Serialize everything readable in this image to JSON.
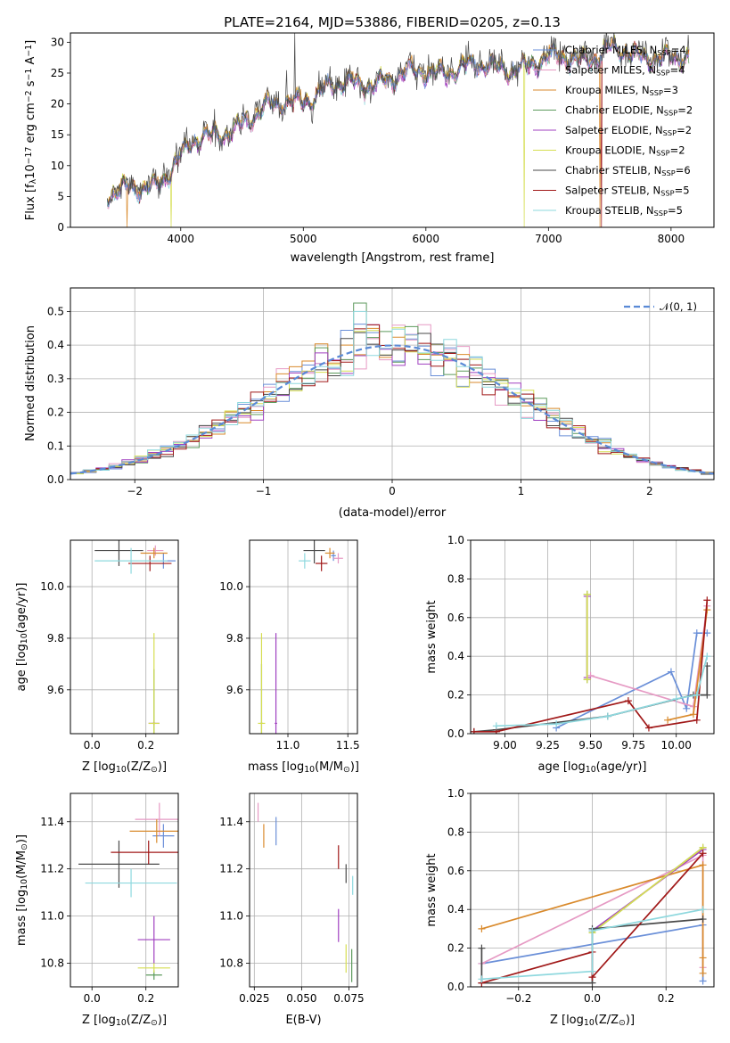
{
  "figure": {
    "title": "PLATE=2164, MJD=53886, FIBERID=0205, z=0.13"
  },
  "colors": {
    "Chabrier MILES": "#6a8fd8",
    "Salpeter MILES": "#e69ac4",
    "Kroupa MILES": "#d98a2c",
    "Chabrier ELODIE": "#5c9a5c",
    "Salpeter ELODIE": "#a040c0",
    "Kroupa ELODIE": "#d6de52",
    "Chabrier STELIB": "#4a4a4a",
    "Salpeter STELIB": "#a01818",
    "Kroupa STELIB": "#8ed8de",
    "gaussian": "#5a8ad6"
  },
  "chart_data": [
    {
      "id": "spectrum",
      "type": "line",
      "title": "PLATE=2164, MJD=53886, FIBERID=0205, z=0.13",
      "xlabel": "wavelength [Angstrom, rest frame]",
      "ylabel": "Flux [f$_\\lambda$10$^{-17}$ erg cm$^{-2}$ s$^{-1}$ A$^{-1}$]",
      "ylabel_parts": [
        "Flux [f",
        "λ",
        "10",
        "−17",
        " erg cm",
        "−2",
        " s",
        "−1",
        " A",
        "−1",
        "]"
      ],
      "xlim": [
        3100,
        8350
      ],
      "ylim": [
        0,
        31.5
      ],
      "xticks": [
        4000,
        5000,
        6000,
        7000,
        8000
      ],
      "yticks": [
        0,
        5,
        10,
        15,
        20,
        25,
        30
      ],
      "legend_position": "top-right",
      "legend": [
        {
          "model": "Chabrier MILES",
          "label_main": "Chabrier MILES, N",
          "label_sub": "SSP",
          "label_end": "=4"
        },
        {
          "model": "Salpeter MILES",
          "label_main": "Salpeter MILES, N",
          "label_sub": "SSP",
          "label_end": "=4"
        },
        {
          "model": "Kroupa MILES",
          "label_main": "Kroupa MILES, N",
          "label_sub": "SSP",
          "label_end": "=3"
        },
        {
          "model": "Chabrier ELODIE",
          "label_main": "Chabrier ELODIE, N",
          "label_sub": "SSP",
          "label_end": "=2"
        },
        {
          "model": "Salpeter ELODIE",
          "label_main": "Salpeter ELODIE, N",
          "label_sub": "SSP",
          "label_end": "=2"
        },
        {
          "model": "Kroupa ELODIE",
          "label_main": "Kroupa ELODIE, N",
          "label_sub": "SSP",
          "label_end": "=2"
        },
        {
          "model": "Chabrier STELIB",
          "label_main": "Chabrier STELIB, N",
          "label_sub": "SSP",
          "label_end": "=6"
        },
        {
          "model": "Salpeter STELIB",
          "label_main": "Salpeter STELIB, N",
          "label_sub": "SSP",
          "label_end": "=5"
        },
        {
          "model": "Kroupa STELIB",
          "label_main": "Kroupa STELIB, N",
          "label_sub": "SSP",
          "label_end": "=5"
        }
      ],
      "continuum_anchors": {
        "x": [
          3400,
          3600,
          3800,
          3950,
          4100,
          4300,
          4500,
          4700,
          4900,
          5100,
          5300,
          5500,
          5700,
          5900,
          6100,
          6300,
          6500,
          6700,
          6900,
          7100,
          7300,
          7500,
          7700,
          7900,
          8100
        ],
        "y": [
          5.5,
          5.8,
          7.0,
          10.5,
          13.5,
          15.0,
          17.0,
          19.0,
          20.5,
          21.5,
          23.0,
          23.5,
          24.0,
          24.8,
          25.5,
          26.0,
          25.8,
          26.0,
          26.5,
          27.5,
          27.5,
          28.5,
          27.8,
          28.0,
          27.0
        ]
      },
      "line_range": [
        3400,
        8150
      ]
    },
    {
      "id": "residuals",
      "type": "bar",
      "xlabel": "(data-model)/error",
      "ylabel": "Normed distribution",
      "xlim": [
        -2.5,
        2.5
      ],
      "ylim": [
        0,
        0.57
      ],
      "xticks": [
        -2,
        -1,
        0,
        1,
        2
      ],
      "yticks": [
        0.0,
        0.1,
        0.2,
        0.3,
        0.4,
        0.5
      ],
      "grid": true,
      "legend_position": "top-right",
      "gaussian_label": "𝒩(0, 1)",
      "bin_width": 0.1,
      "peak_values": [
        {
          "x": -0.25,
          "y": 0.54
        },
        {
          "x": 0.2,
          "y": 0.47
        }
      ]
    },
    {
      "id": "age-vs-Z",
      "type": "scatter",
      "xlabel_main": "Z [log",
      "xlabel_sub": "10",
      "xlabel_end": "(Z/Z",
      "xlabel_close": ")]",
      "ylabel_main": "age  [log",
      "ylabel_sub": "10",
      "ylabel_end": "(age/yr)]",
      "xlim": [
        -0.08,
        0.32
      ],
      "ylim": [
        9.43,
        10.18
      ],
      "xticks": [
        0.0,
        0.2
      ],
      "yticks": [
        9.6,
        9.8,
        10.0
      ],
      "grid": true,
      "points": [
        {
          "model": "Chabrier MILES",
          "x": 0.265,
          "xerr": 0.045,
          "y": 10.1,
          "yerr": 0.03
        },
        {
          "model": "Salpeter MILES",
          "x": 0.235,
          "xerr": 0.03,
          "y": 10.14,
          "yerr": 0.02
        },
        {
          "model": "Kroupa MILES",
          "x": 0.23,
          "xerr": 0.05,
          "y": 10.13,
          "yerr": 0.02
        },
        {
          "model": "Chabrier ELODIE",
          "x": 0.23,
          "xerr": 0.005,
          "y": 9.47,
          "yerr": 0.21
        },
        {
          "model": "Salpeter ELODIE",
          "x": 0.23,
          "xerr": 0.02,
          "y": 9.47,
          "yerr": 0.005
        },
        {
          "model": "Kroupa ELODIE",
          "x": 0.23,
          "xerr": 0.02,
          "y": 9.47,
          "yerr": 0.35
        },
        {
          "model": "Chabrier STELIB",
          "x": 0.1,
          "xerr": 0.09,
          "y": 10.14,
          "yerr": 0.06
        },
        {
          "model": "Salpeter STELIB",
          "x": 0.215,
          "xerr": 0.08,
          "y": 10.09,
          "yerr": 0.03
        },
        {
          "model": "Kroupa STELIB",
          "x": 0.145,
          "xerr": 0.135,
          "y": 10.1,
          "yerr": 0.05
        }
      ]
    },
    {
      "id": "age-vs-mass",
      "type": "scatter",
      "xlabel_main": "mass [log",
      "xlabel_sub": "10",
      "xlabel_end": "(M/M",
      "xlabel_close": ")]",
      "xlim": [
        10.68,
        11.58
      ],
      "ylim": [
        9.43,
        10.18
      ],
      "xticks": [
        10.5,
        11.0,
        11.5
      ],
      "yticks": [
        9.6,
        9.8,
        10.0
      ],
      "grid": true,
      "points": [
        {
          "model": "Chabrier MILES",
          "x": 11.38,
          "xerr": 0.02,
          "y": 10.12,
          "yerr": 0.02
        },
        {
          "model": "Salpeter MILES",
          "x": 11.42,
          "xerr": 0.04,
          "y": 10.11,
          "yerr": 0.02
        },
        {
          "model": "Kroupa MILES",
          "x": 11.35,
          "xerr": 0.04,
          "y": 10.13,
          "yerr": 0.02
        },
        {
          "model": "Chabrier ELODIE",
          "x": 10.78,
          "xerr": 0.01,
          "y": 9.47,
          "yerr": 0.23
        },
        {
          "model": "Salpeter ELODIE",
          "x": 10.9,
          "xerr": 0.01,
          "y": 9.47,
          "yerr": 0.35
        },
        {
          "model": "Kroupa ELODIE",
          "x": 10.78,
          "xerr": 0.03,
          "y": 9.47,
          "yerr": 0.35
        },
        {
          "model": "Chabrier STELIB",
          "x": 11.22,
          "xerr": 0.09,
          "y": 10.14,
          "yerr": 0.05
        },
        {
          "model": "Salpeter STELIB",
          "x": 11.28,
          "xerr": 0.05,
          "y": 10.09,
          "yerr": 0.03
        },
        {
          "model": "Kroupa STELIB",
          "x": 11.14,
          "xerr": 0.05,
          "y": 10.1,
          "yerr": 0.03
        }
      ]
    },
    {
      "id": "weight-vs-age",
      "type": "line",
      "xlabel_main": "age  [log",
      "xlabel_sub": "10",
      "xlabel_end": "(age/yr)]",
      "ylabel": "mass weight",
      "xlim": [
        8.8,
        10.22
      ],
      "ylim": [
        0,
        1
      ],
      "xticks": [
        9.0,
        9.25,
        9.5,
        9.75,
        10.0
      ],
      "xticklabels": [
        "9.00",
        "9.25",
        "9.50",
        "9.75",
        "10.00"
      ],
      "yticks": [
        0.0,
        0.2,
        0.4,
        0.6,
        0.8,
        1.0
      ],
      "grid": true,
      "series": [
        {
          "model": "Chabrier MILES",
          "x": [
            9.3,
            9.97,
            10.06,
            10.12,
            10.18
          ],
          "y": [
            0.03,
            0.32,
            0.13,
            0.52,
            0.52
          ]
        },
        {
          "model": "Salpeter MILES",
          "x": [
            9.5,
            10.1,
            10.18
          ],
          "y": [
            0.3,
            0.14,
            0.66
          ]
        },
        {
          "model": "Kroupa MILES",
          "x": [
            9.95,
            10.1,
            10.18
          ],
          "y": [
            0.07,
            0.1,
            0.64
          ]
        },
        {
          "model": "Chabrier ELODIE",
          "x": [
            9.48,
            9.48
          ],
          "y": [
            0.28,
            0.72
          ]
        },
        {
          "model": "Salpeter ELODIE",
          "x": [
            9.48,
            9.48
          ],
          "y": [
            0.29,
            0.71
          ]
        },
        {
          "model": "Kroupa ELODIE",
          "x": [
            9.48,
            9.48
          ],
          "y": [
            0.28,
            0.72
          ]
        },
        {
          "model": "Chabrier STELIB",
          "x": [
            8.82,
            8.95,
            9.6,
            10.1,
            10.18,
            10.18
          ],
          "y": [
            0.01,
            0.02,
            0.09,
            0.2,
            0.2,
            0.35
          ]
        },
        {
          "model": "Salpeter STELIB",
          "x": [
            8.82,
            8.95,
            9.72,
            9.84,
            10.12,
            10.18
          ],
          "y": [
            0.01,
            0.01,
            0.17,
            0.03,
            0.07,
            0.69
          ]
        },
        {
          "model": "Kroupa STELIB",
          "x": [
            8.95,
            9.3,
            9.6,
            10.0,
            10.12,
            10.18
          ],
          "y": [
            0.04,
            0.05,
            0.09,
            0.18,
            0.2,
            0.4
          ]
        }
      ]
    },
    {
      "id": "mass-vs-Z",
      "type": "scatter",
      "xlabel_main": "Z [log",
      "xlabel_sub": "10",
      "xlabel_end": "(Z/Z",
      "xlabel_close": ")]",
      "ylabel_main": "mass [log",
      "ylabel_sub": "10",
      "ylabel_end": "(M/M",
      "ylabel_close": ")]",
      "xlim": [
        -0.08,
        0.32
      ],
      "ylim": [
        10.7,
        11.52
      ],
      "xticks": [
        0.0,
        0.2
      ],
      "yticks": [
        10.8,
        11.0,
        11.2,
        11.4
      ],
      "grid": true,
      "points": [
        {
          "model": "Chabrier MILES",
          "x": 0.265,
          "xerr": 0.04,
          "y": 11.34,
          "yerr": 0.05
        },
        {
          "model": "Salpeter MILES",
          "x": 0.25,
          "xerr": 0.09,
          "y": 11.41,
          "yerr": 0.07
        },
        {
          "model": "Kroupa MILES",
          "x": 0.24,
          "xerr": 0.1,
          "y": 11.36,
          "yerr": 0.05
        },
        {
          "model": "Chabrier ELODIE",
          "x": 0.23,
          "xerr": 0.03,
          "y": 10.75,
          "yerr": 0.02
        },
        {
          "model": "Salpeter ELODIE",
          "x": 0.23,
          "xerr": 0.06,
          "y": 10.9,
          "yerr": 0.1
        },
        {
          "model": "Kroupa ELODIE",
          "x": 0.23,
          "xerr": 0.06,
          "y": 10.78,
          "yerr": 0.02
        },
        {
          "model": "Chabrier STELIB",
          "x": 0.1,
          "xerr": 0.15,
          "y": 11.22,
          "yerr": 0.1
        },
        {
          "model": "Salpeter STELIB",
          "x": 0.21,
          "xerr": 0.14,
          "y": 11.27,
          "yerr": 0.05
        },
        {
          "model": "Kroupa STELIB",
          "x": 0.145,
          "xerr": 0.17,
          "y": 11.14,
          "yerr": 0.06
        }
      ]
    },
    {
      "id": "mass-vs-ebv",
      "type": "scatter",
      "xlabel": "E(B-V)",
      "xlim": [
        0.0225,
        0.0795
      ],
      "ylim": [
        10.7,
        11.52
      ],
      "xticks": [
        0.025,
        0.05,
        0.075
      ],
      "xticklabels": [
        "0.025",
        "0.050",
        "0.075"
      ],
      "yticks": [
        10.8,
        11.0,
        11.2,
        11.4
      ],
      "grid": true,
      "points": [
        {
          "model": "Chabrier MILES",
          "x": 0.0365,
          "y": 11.36,
          "yerr": 0.06
        },
        {
          "model": "Salpeter MILES",
          "x": 0.027,
          "y": 11.44,
          "yerr": 0.04
        },
        {
          "model": "Kroupa MILES",
          "x": 0.03,
          "y": 11.34,
          "yerr": 0.05
        },
        {
          "model": "Chabrier ELODIE",
          "x": 0.0765,
          "y": 10.79,
          "yerr": 0.07
        },
        {
          "model": "Salpeter ELODIE",
          "x": 0.0695,
          "y": 10.96,
          "yerr": 0.07
        },
        {
          "model": "Kroupa ELODIE",
          "x": 0.0735,
          "y": 10.82,
          "yerr": 0.06
        },
        {
          "model": "Chabrier STELIB",
          "x": 0.0735,
          "y": 11.18,
          "yerr": 0.04
        },
        {
          "model": "Salpeter STELIB",
          "x": 0.0695,
          "y": 11.25,
          "yerr": 0.05
        },
        {
          "model": "Kroupa STELIB",
          "x": 0.077,
          "y": 11.13,
          "yerr": 0.04
        }
      ]
    },
    {
      "id": "weight-vs-Z",
      "type": "line",
      "xlabel_main": "Z [log",
      "xlabel_sub": "10",
      "xlabel_end": "(Z/Z",
      "xlabel_close": ")]",
      "ylabel": "mass weight",
      "xlim": [
        -0.33,
        0.33
      ],
      "ylim": [
        0,
        1
      ],
      "xticks": [
        -0.2,
        0.0,
        0.2
      ],
      "xticklabels": [
        "−0.2",
        "0.0",
        "0.2"
      ],
      "yticks": [
        0.0,
        0.2,
        0.4,
        0.6,
        0.8,
        1.0
      ],
      "grid": true,
      "series": [
        {
          "model": "Chabrier MILES",
          "x": [
            -0.3,
            0.3,
            0.3
          ],
          "y": [
            0.12,
            0.32,
            0.03
          ]
        },
        {
          "model": "Salpeter MILES",
          "x": [
            -0.3,
            0.3,
            0.3
          ],
          "y": [
            0.12,
            0.68,
            0.1
          ]
        },
        {
          "model": "Kroupa MILES",
          "x": [
            -0.3,
            0.3,
            0.3,
            0.3
          ],
          "y": [
            0.3,
            0.63,
            0.15,
            0.07
          ]
        },
        {
          "model": "Chabrier ELODIE",
          "x": [
            0.0,
            0.3
          ],
          "y": [
            0.28,
            0.72
          ]
        },
        {
          "model": "Salpeter ELODIE",
          "x": [
            0.0,
            0.3
          ],
          "y": [
            0.29,
            0.71
          ]
        },
        {
          "model": "Kroupa ELODIE",
          "x": [
            0.0,
            0.3
          ],
          "y": [
            0.28,
            0.72
          ]
        },
        {
          "model": "Chabrier STELIB",
          "x": [
            -0.3,
            -0.3,
            0.0,
            0.0,
            0.3
          ],
          "y": [
            0.2,
            0.02,
            0.02,
            0.3,
            0.35
          ]
        },
        {
          "model": "Salpeter STELIB",
          "x": [
            -0.3,
            0.0,
            0.0,
            0.3
          ],
          "y": [
            0.02,
            0.18,
            0.05,
            0.69
          ]
        },
        {
          "model": "Kroupa STELIB",
          "x": [
            -0.3,
            0.0,
            0.0,
            0.3
          ],
          "y": [
            0.04,
            0.08,
            0.29,
            0.4
          ]
        }
      ]
    }
  ]
}
